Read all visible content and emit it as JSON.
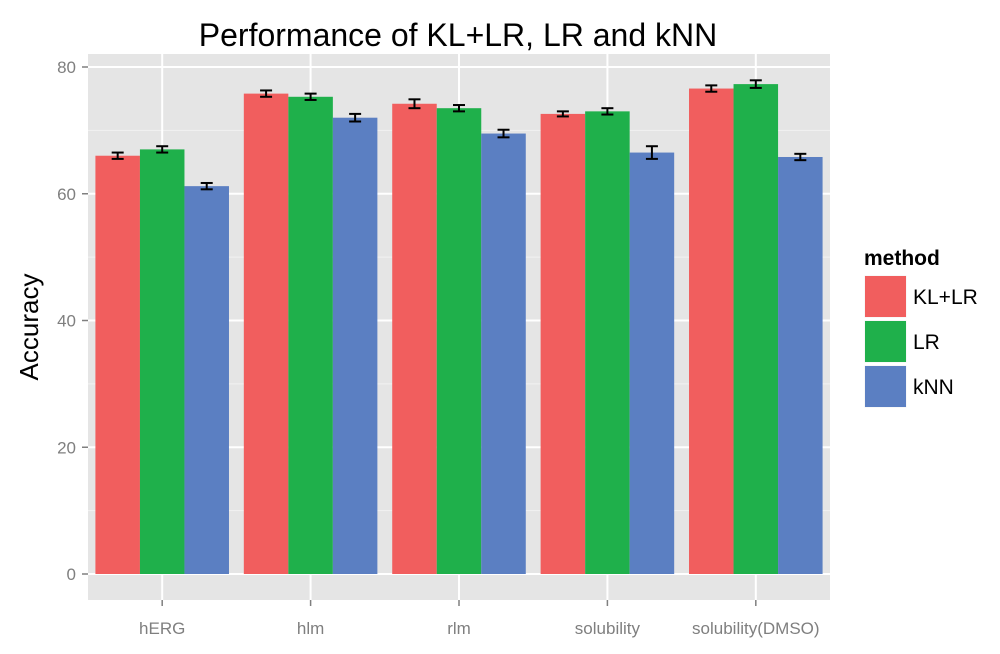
{
  "chart_data": {
    "type": "bar",
    "title": "Performance of KL+LR, LR and kNN",
    "xlabel": "",
    "ylabel": "Accuracy",
    "categories": [
      "hERG",
      "hlm",
      "rlm",
      "solubility",
      "solubility(DMSO)"
    ],
    "ylim": [
      0,
      80
    ],
    "yticks": [
      0,
      20,
      40,
      60,
      80
    ],
    "grid": true,
    "background": "#e5e5e5",
    "legend": {
      "title": "method",
      "placement": "right"
    },
    "series": [
      {
        "name": "KL+LR",
        "color": "#f15e5e",
        "values": [
          66.0,
          75.8,
          74.2,
          72.6,
          76.6
        ],
        "errors": [
          0.5,
          0.5,
          0.7,
          0.4,
          0.5
        ]
      },
      {
        "name": "LR",
        "color": "#1fb04b",
        "values": [
          67.0,
          75.3,
          73.5,
          73.0,
          77.3
        ],
        "errors": [
          0.5,
          0.5,
          0.5,
          0.5,
          0.6
        ]
      },
      {
        "name": "kNN",
        "color": "#5b7fc2",
        "values": [
          61.2,
          72.0,
          69.5,
          66.5,
          65.8
        ],
        "errors": [
          0.5,
          0.6,
          0.6,
          1.0,
          0.5
        ]
      }
    ]
  }
}
